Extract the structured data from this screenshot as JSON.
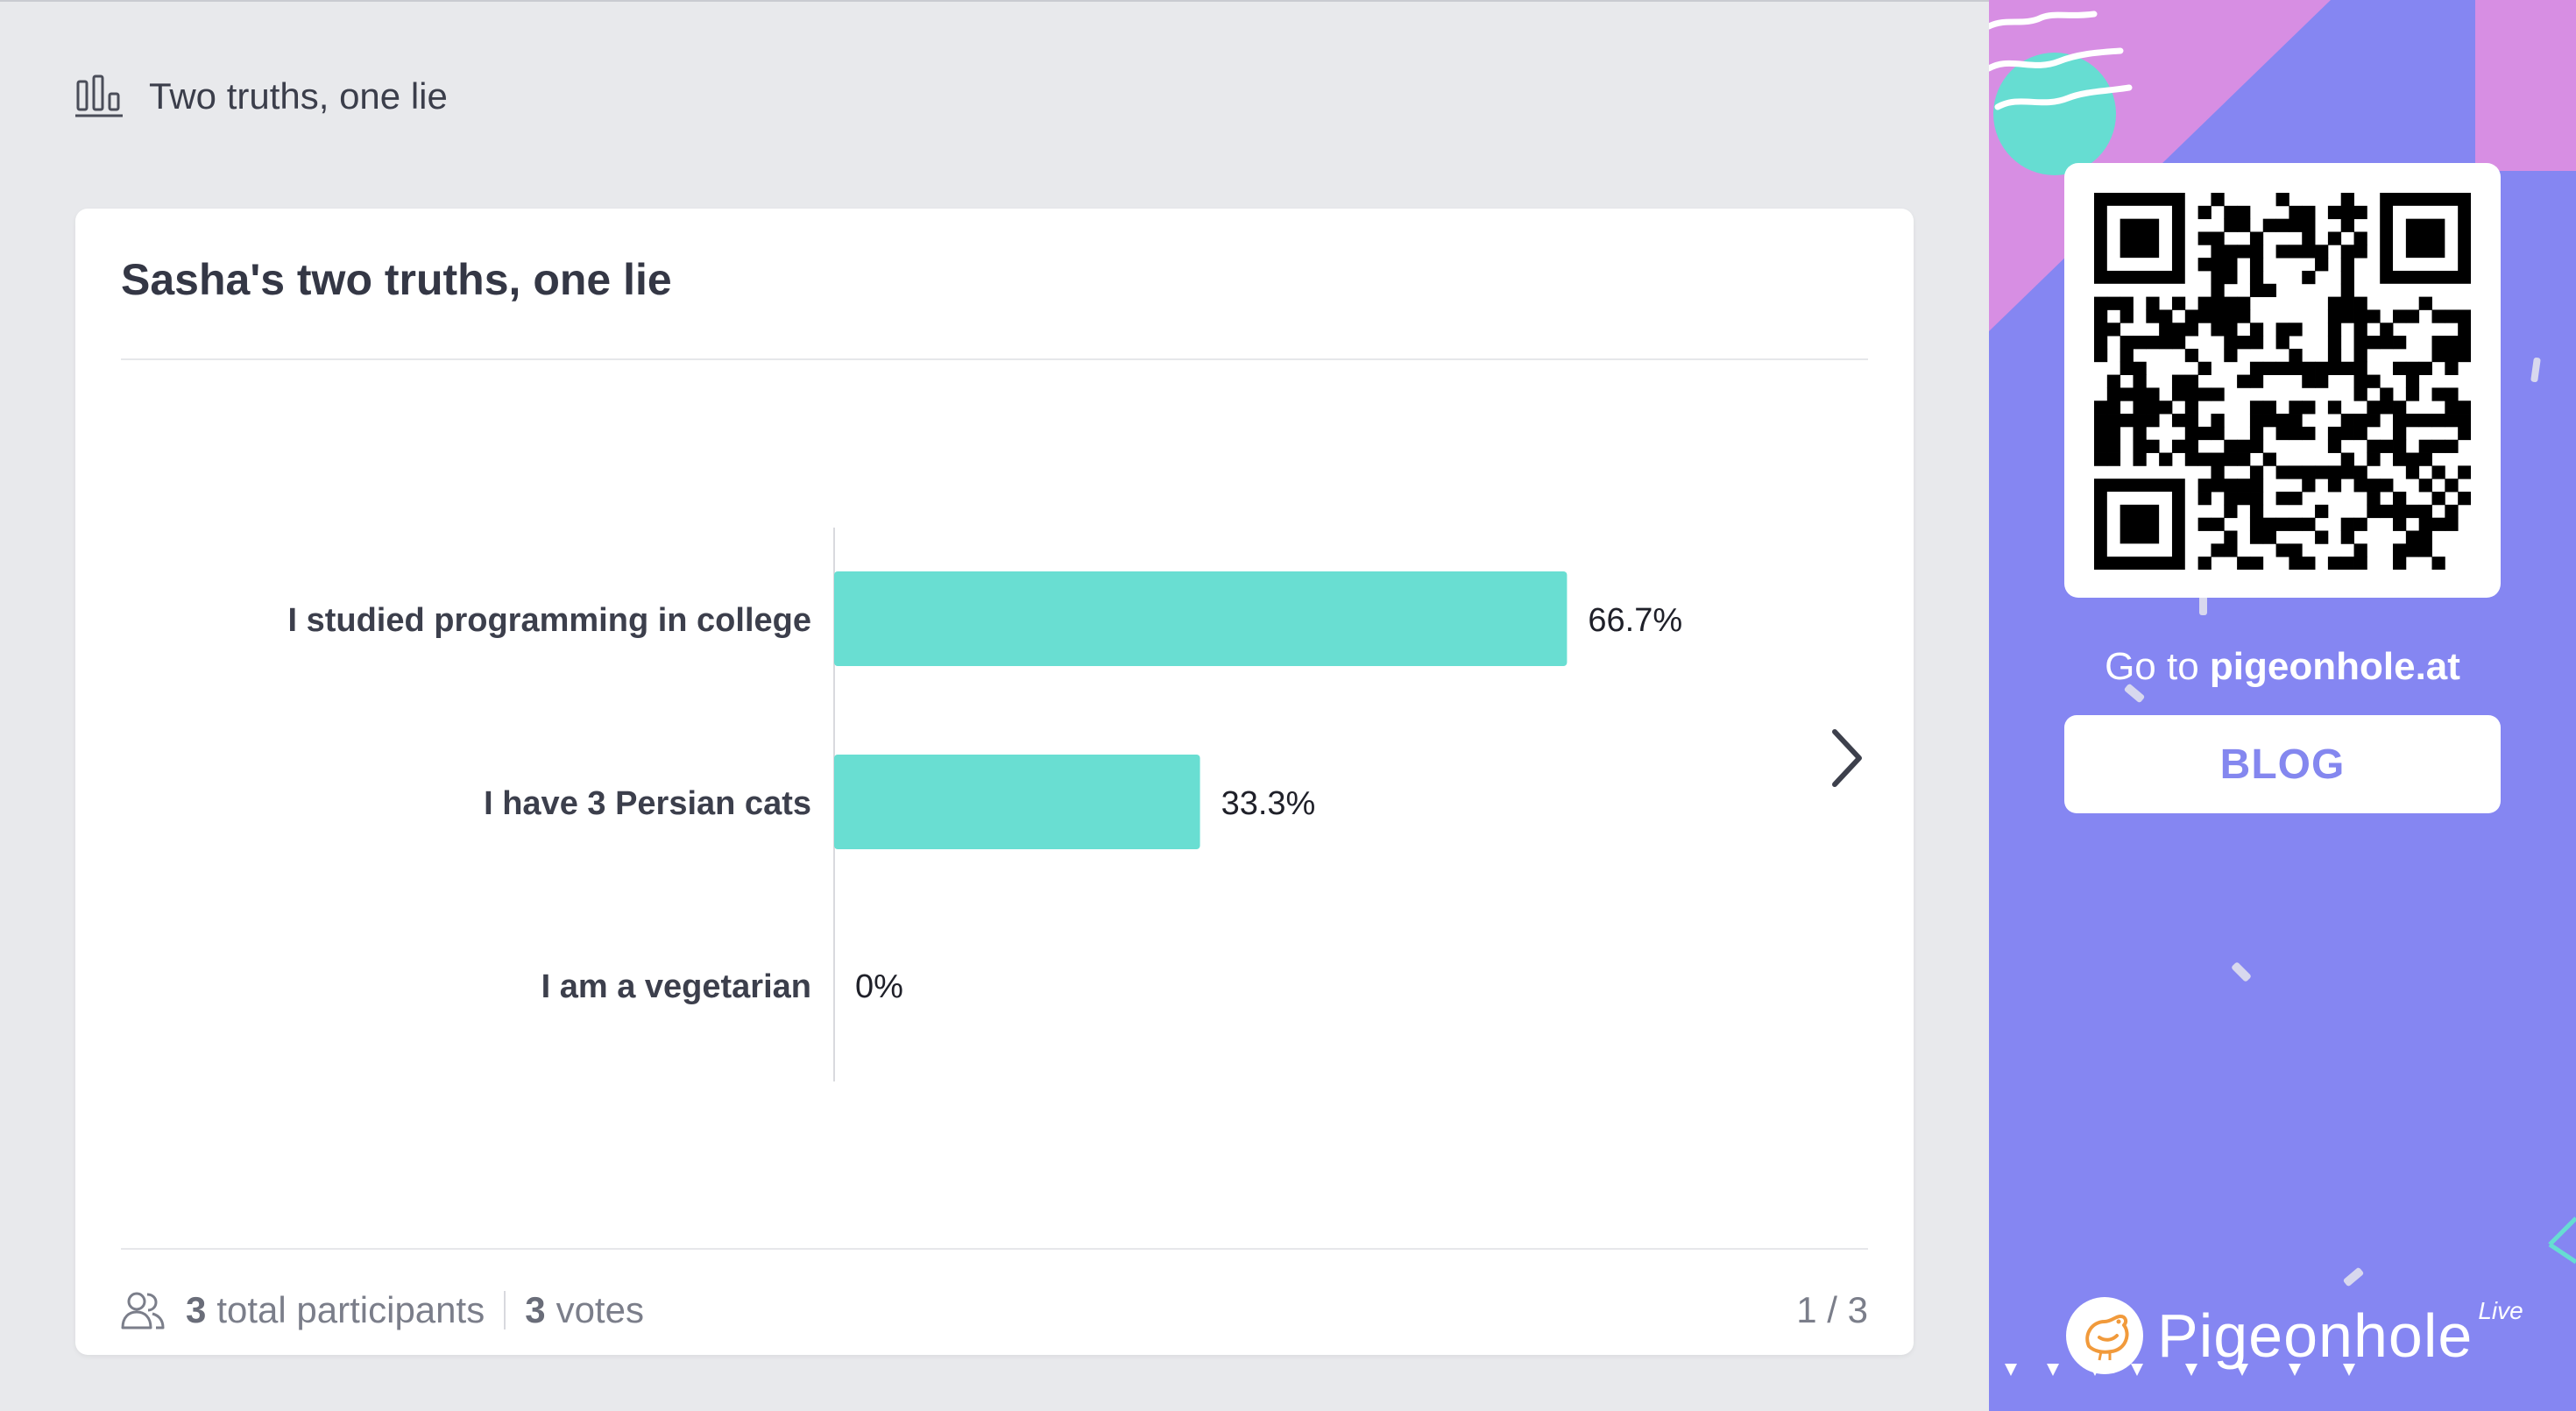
{
  "header": {
    "title": "Two truths, one lie",
    "icon": "bar-chart-icon"
  },
  "card": {
    "title": "Sasha's two truths, one lie",
    "footer": {
      "participants_count": "3",
      "participants_label": "total participants",
      "votes_count": "3",
      "votes_label": "votes",
      "pager": "1 / 3"
    }
  },
  "chart_data": {
    "type": "bar",
    "orientation": "horizontal",
    "categories": [
      "I studied programming in college",
      "I have 3 Persian cats",
      "I am a vegetarian"
    ],
    "values": [
      66.7,
      33.3,
      0
    ],
    "value_labels": [
      "66.7%",
      "33.3%",
      "0%"
    ],
    "xlim": [
      0,
      100
    ],
    "grid": false,
    "bar_color": "#69ded2"
  },
  "sidebar": {
    "goto_prefix": "Go to",
    "goto_domain": "pigeonhole.at",
    "blog_label": "BLOG",
    "brand_name": "Pigeonhole",
    "brand_sup": "Live",
    "colors": {
      "background": "#8586f2",
      "pink": "#d78ee3",
      "teal": "#66ddd2"
    }
  }
}
